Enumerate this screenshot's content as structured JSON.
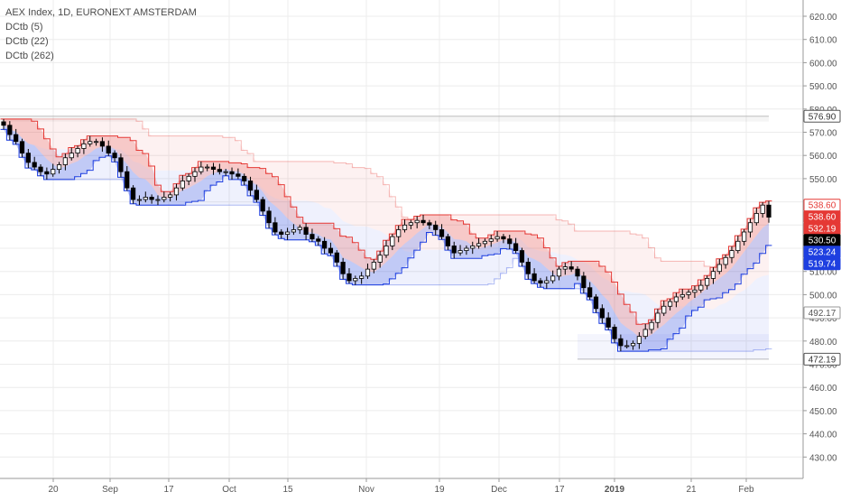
{
  "legend": {
    "title": "AEX Index, 1D, EURONEXT AMSTERDAM",
    "studies": [
      "DCtb (5)",
      "DCtb (22)",
      "DCtb (262)"
    ]
  },
  "chart_data": {
    "type": "candlestick",
    "y_ticks": [
      620,
      610,
      600,
      590,
      580,
      570,
      560,
      550,
      540,
      530,
      520,
      510,
      500,
      490,
      480,
      470,
      460,
      450,
      440,
      430
    ],
    "ylim": [
      424,
      624
    ],
    "x_labels": [
      "20",
      "Sep",
      "17",
      "Oct",
      "15",
      "Nov",
      "19",
      "Dec",
      "17",
      "2019",
      "21",
      "Feb"
    ],
    "price_labels": [
      {
        "text": "576.90",
        "value": 576.9,
        "bg": "#ffffff",
        "fg": "#333333",
        "border": "#555555"
      },
      {
        "text": "538.60",
        "value": 538.6,
        "bg": "#ffffff",
        "fg": "#e53935",
        "border": "#e53935"
      },
      {
        "text": "538.60",
        "value": 538.6,
        "bg": "#e53935",
        "fg": "#ffffff",
        "border": "#e53935"
      },
      {
        "text": "532.19",
        "value": 532.19,
        "bg": "#e53935",
        "fg": "#ffffff",
        "border": "#e53935"
      },
      {
        "text": "530.50",
        "value": 530.5,
        "bg": "#000000",
        "fg": "#ffffff",
        "border": "#000000"
      },
      {
        "text": "523.24",
        "value": 523.24,
        "bg": "#1e3fe0",
        "fg": "#ffffff",
        "border": "#1e3fe0"
      },
      {
        "text": "519.74",
        "value": 519.74,
        "bg": "#1e3fe0",
        "fg": "#ffffff",
        "border": "#1e3fe0"
      },
      {
        "text": "492.17",
        "value": 492.17,
        "bg": "#ffffff",
        "fg": "#555555",
        "border": "#999999"
      },
      {
        "text": "472.19",
        "value": 472.19,
        "bg": "#ffffff",
        "fg": "#333333",
        "border": "#555555"
      }
    ],
    "close": [
      573,
      569,
      566,
      561,
      557,
      555,
      553,
      552,
      554,
      556,
      559,
      561,
      563,
      565,
      566,
      566,
      564,
      561,
      559,
      553,
      546,
      541,
      541,
      542,
      541,
      541,
      542,
      543,
      546,
      549,
      551,
      553,
      555,
      555,
      554,
      553,
      553,
      552,
      551,
      549,
      545,
      541,
      536,
      531,
      527,
      526,
      527,
      528,
      529,
      526,
      524,
      523,
      520,
      518,
      514,
      509,
      506,
      507,
      508,
      511,
      514,
      517,
      521,
      525,
      528,
      530,
      531,
      532,
      531,
      530,
      528,
      525,
      521,
      518,
      519,
      520,
      521,
      522,
      523,
      524,
      525,
      524,
      522,
      519,
      514,
      509,
      506,
      505,
      506,
      508,
      511,
      512,
      511,
      508,
      503,
      499,
      494,
      490,
      486,
      481,
      478,
      478,
      479,
      482,
      485,
      488,
      492,
      495,
      497,
      499,
      500,
      501,
      502,
      504,
      507,
      510,
      513,
      516,
      519,
      523,
      527,
      531,
      535,
      538.6,
      533.4
    ],
    "colors": {
      "up": "#ffffff",
      "down": "#000000",
      "wick": "#000000",
      "upper_band": "#e53935",
      "lower_band": "#1e3fe0",
      "grid": "#ececec",
      "axis_text": "#555555"
    },
    "bands": {
      "dctb_5": {
        "upper": 538.6,
        "lower": 523.24
      },
      "dctb_22": {
        "upper": 532.19,
        "lower": 519.74
      },
      "dctb_262": {
        "upper": 576.9,
        "lower": 472.19,
        "mid": 492.17
      }
    }
  }
}
